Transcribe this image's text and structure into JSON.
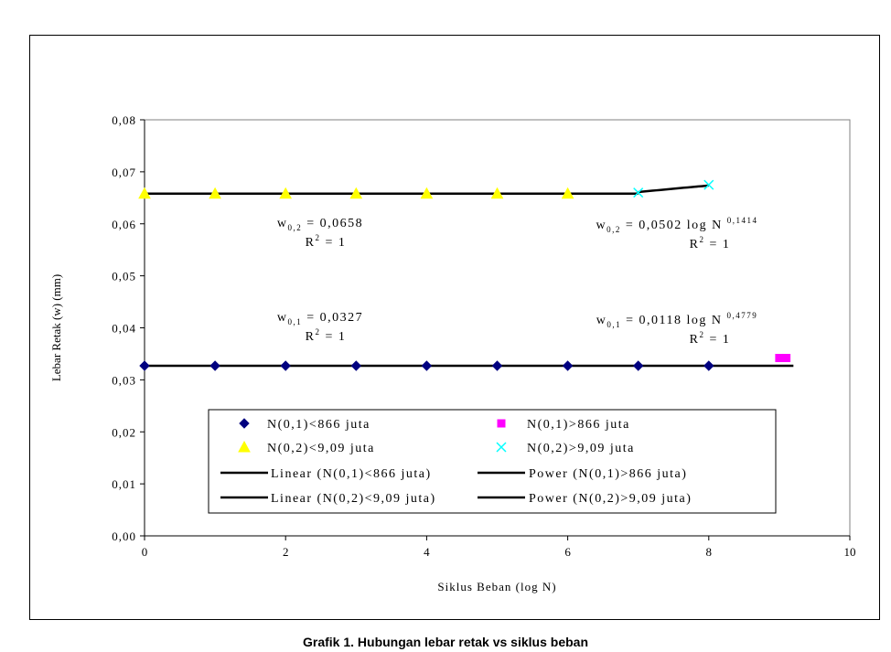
{
  "chart_data": {
    "type": "scatter",
    "xlabel": "Siklus Beban (log N)",
    "ylabel": "Lebar Retak (w) (mm)",
    "xlim": [
      0,
      10
    ],
    "ylim": [
      0,
      0.08
    ],
    "x_ticks": [
      "0",
      "2",
      "4",
      "6",
      "8",
      "10"
    ],
    "y_ticks": [
      "0,00",
      "0,01",
      "0,02",
      "0,03",
      "0,04",
      "0,05",
      "0,06",
      "0,07",
      "0,08"
    ],
    "grid": false,
    "legend_position": "bottom-center",
    "series": [
      {
        "name": "N(0,1)<866 juta",
        "marker": "diamond",
        "color": "#000080",
        "points": [
          [
            0,
            0.0327
          ],
          [
            1,
            0.0327
          ],
          [
            2,
            0.0327
          ],
          [
            3,
            0.0327
          ],
          [
            4,
            0.0327
          ],
          [
            5,
            0.0327
          ],
          [
            6,
            0.0327
          ],
          [
            7,
            0.0327
          ],
          [
            8,
            0.0327
          ]
        ]
      },
      {
        "name": "N(0,1)>866 juta",
        "marker": "square",
        "color": "#ff00ff",
        "points": [
          [
            9.0,
            0.0342
          ],
          [
            9.1,
            0.0342
          ]
        ]
      },
      {
        "name": "N(0,2)<9,09 juta",
        "marker": "triangle",
        "color": "#ffff00",
        "points": [
          [
            0,
            0.0658
          ],
          [
            1,
            0.0658
          ],
          [
            2,
            0.0658
          ],
          [
            3,
            0.0658
          ],
          [
            4,
            0.0658
          ],
          [
            5,
            0.0658
          ],
          [
            6,
            0.0658
          ]
        ]
      },
      {
        "name": "N(0,2)>9,09 juta",
        "marker": "x",
        "color": "#00ffff",
        "points": [
          [
            7,
            0.066
          ],
          [
            8,
            0.0675
          ]
        ]
      }
    ],
    "trendlines": [
      {
        "name": "Linear (N(0,1)<866 juta)",
        "type": "linear",
        "color": "#000000",
        "x_range": [
          0,
          9.2
        ],
        "y": 0.0327
      },
      {
        "name": "Power (N(0,1)>866 juta)",
        "type": "power",
        "color": "#000000",
        "x_range": [
          9.0,
          9.1
        ],
        "coef": 0.0118,
        "exp": 0.4779
      },
      {
        "name": "Linear (N(0,2)<9,09 juta)",
        "type": "linear",
        "color": "#000000",
        "x_range": [
          0,
          7
        ],
        "y": 0.0658
      },
      {
        "name": "Power (N(0,2)>9,09 juta)",
        "type": "power",
        "color": "#000000",
        "x_range": [
          7,
          8
        ],
        "coef": 0.0502,
        "exp": 0.1414
      }
    ],
    "legend_entries": [
      {
        "label": "N(0,1)<866 juta",
        "symbol": "diamond",
        "color": "#000080"
      },
      {
        "label": "N(0,1)>866 juta",
        "symbol": "square",
        "color": "#ff00ff"
      },
      {
        "label": "N(0,2)<9,09 juta",
        "symbol": "triangle",
        "color": "#ffff00"
      },
      {
        "label": "N(0,2)>9,09 juta",
        "symbol": "x",
        "color": "#00ffff"
      },
      {
        "label": "Linear (N(0,1)<866 juta)",
        "symbol": "line",
        "color": "#000000"
      },
      {
        "label": "Power (N(0,1)>866 juta)",
        "symbol": "line",
        "color": "#000000"
      },
      {
        "label": "Linear (N(0,2)<9,09 juta)",
        "symbol": "line",
        "color": "#000000"
      },
      {
        "label": "Power (N(0,2)>9,09 juta)",
        "symbol": "line",
        "color": "#000000"
      }
    ],
    "annotations": [
      {
        "eq_base": "w",
        "eq_sub": "0,2",
        "eq_rest": " = 0,0658",
        "eq_sup": "",
        "r2_base": "R",
        "r2_sup": "2",
        "r2_rest": " = 1"
      },
      {
        "eq_base": "w",
        "eq_sub": "0,2",
        "eq_rest": " = 0,0502 log N ",
        "eq_sup": "0,1414",
        "r2_base": "R",
        "r2_sup": "2",
        "r2_rest": " = 1"
      },
      {
        "eq_base": "w",
        "eq_sub": "0,1",
        "eq_rest": " = 0,0327",
        "eq_sup": "",
        "r2_base": "R",
        "r2_sup": "2",
        "r2_rest": " = 1"
      },
      {
        "eq_base": "w",
        "eq_sub": "0,1",
        "eq_rest": " = 0,0118 log N ",
        "eq_sup": "0,4779",
        "r2_base": "R",
        "r2_sup": "2",
        "r2_rest": " = 1"
      }
    ]
  },
  "caption": "Grafik 1. Hubungan lebar retak vs siklus beban"
}
